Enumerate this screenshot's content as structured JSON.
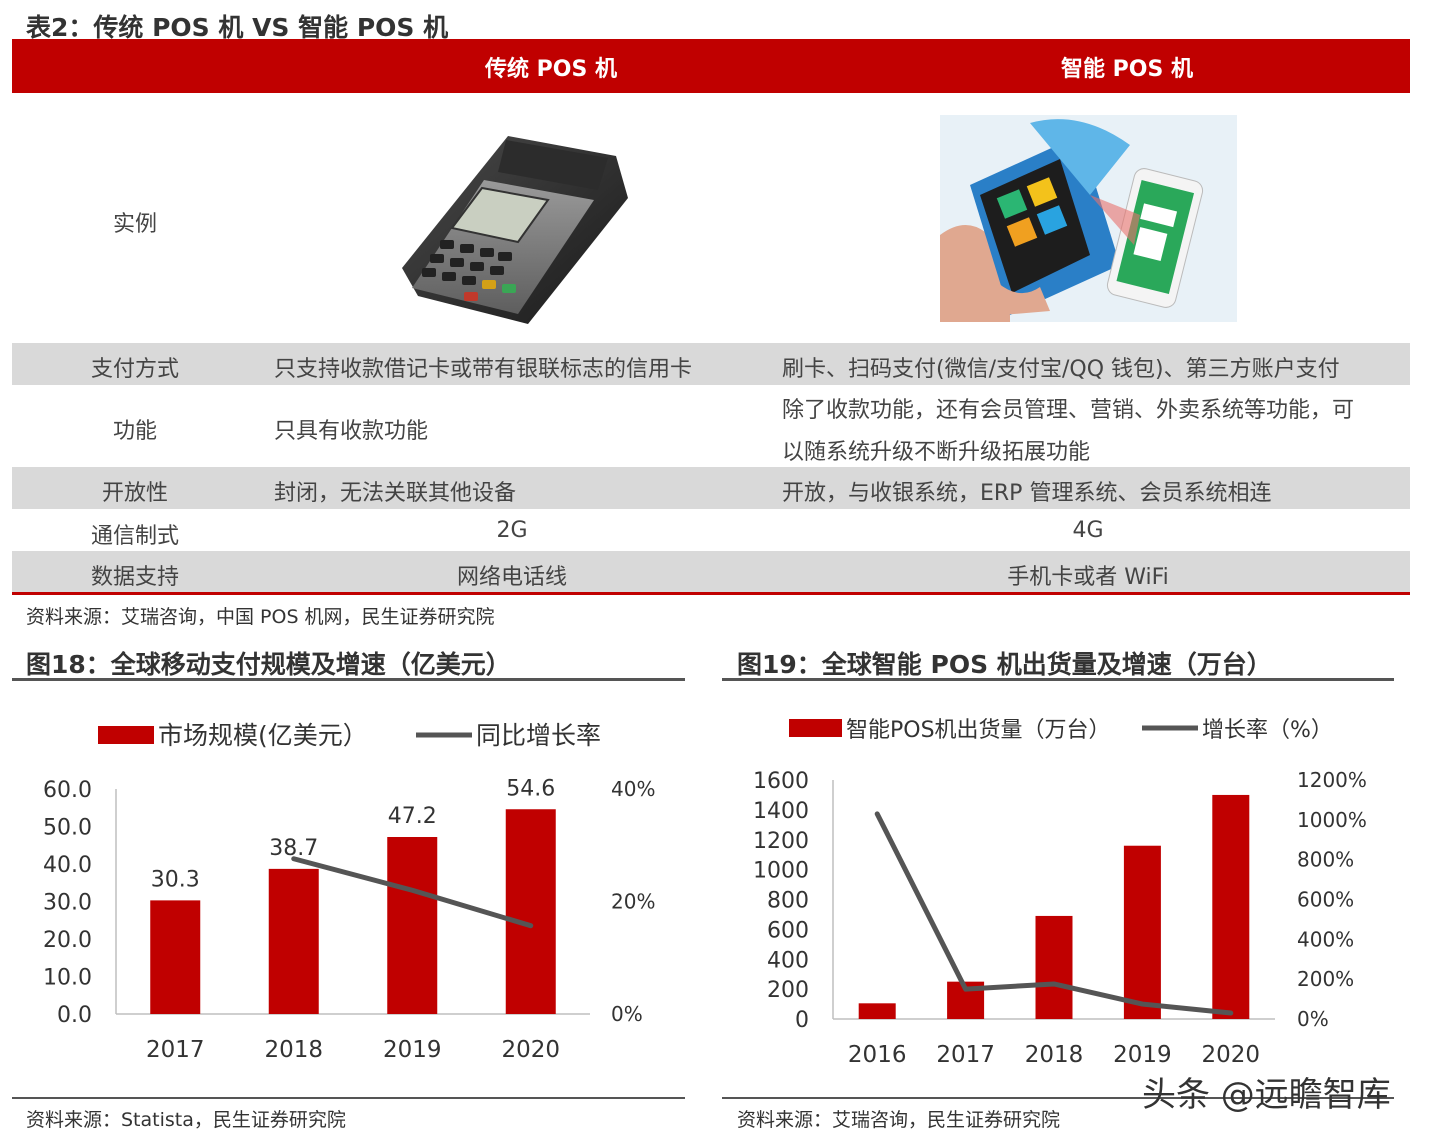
{
  "table": {
    "title": "表2：传统 POS 机 VS 智能 POS 机",
    "col_traditional": "传统 POS 机",
    "col_smart": "智能 POS 机",
    "example_label": "实例",
    "rows": [
      {
        "label": "支付方式",
        "traditional": "只支持收款借记卡或带有银联标志的信用卡",
        "smart": "刷卡、扫码支付(微信/支付宝/QQ 钱包)、第三方账户支付"
      },
      {
        "label": "功能",
        "traditional": "只具有收款功能",
        "smart_line1": "除了收款功能，还有会员管理、营销、外卖系统等功能，可",
        "smart_line2": "以随系统升级不断升级拓展功能"
      },
      {
        "label": "开放性",
        "traditional": "封闭，无法关联其他设备",
        "smart": "开放，与收银系统，ERP 管理系统、会员系统相连"
      },
      {
        "label": "通信制式",
        "traditional": "2G",
        "smart": "4G"
      },
      {
        "label": "数据支持",
        "traditional": "网络电话线",
        "smart": "手机卡或者 WiFi"
      }
    ],
    "source": "资料来源：艾瑞咨询，中国 POS 机网，民生证券研究院"
  },
  "figure18": {
    "title": "图18：全球移动支付规模及增速（亿美元）",
    "source": "资料来源：Statista，民生证券研究院"
  },
  "figure19": {
    "title": "图19：全球智能 POS 机出货量及增速（万台）",
    "source": "资料来源：艾瑞咨询，民生证券研究院"
  },
  "watermark": "头条 @远瞻智库",
  "colors": {
    "brand_red": "#c00000",
    "row_shade": "#d9d9d9",
    "line_gray": "#555555"
  },
  "chart_data": [
    {
      "type": "bar",
      "title": "图18：全球移动支付规模及增速（亿美元）",
      "categories": [
        "2017",
        "2018",
        "2019",
        "2020"
      ],
      "series": [
        {
          "name": "市场规模(亿美元）",
          "type": "bar",
          "axis": "left",
          "values": [
            30.3,
            38.7,
            47.2,
            54.6
          ],
          "data_labels": [
            "30.3",
            "38.7",
            "47.2",
            "54.6"
          ]
        },
        {
          "name": "同比增长率",
          "type": "line",
          "axis": "right",
          "values": [
            null,
            0.276,
            0.22,
            0.157
          ]
        }
      ],
      "ylim": [
        0,
        60
      ],
      "y_ticks": [
        "0.0",
        "10.0",
        "20.0",
        "30.0",
        "40.0",
        "50.0",
        "60.0"
      ],
      "y2lim": [
        0,
        0.4
      ],
      "y2_ticks": [
        "0%",
        "20%",
        "40%"
      ],
      "legend": "top",
      "grid": false
    },
    {
      "type": "bar",
      "title": "图19：全球智能 POS 机出货量及增速（万台）",
      "categories": [
        "2016",
        "2017",
        "2018",
        "2019",
        "2020"
      ],
      "series": [
        {
          "name": "智能POS机出货量（万台）",
          "type": "bar",
          "axis": "left",
          "values": [
            105,
            250,
            690,
            1160,
            1500
          ]
        },
        {
          "name": "增长率（%）",
          "type": "line",
          "axis": "right",
          "values": [
            10.3,
            1.5,
            1.76,
            0.75,
            0.3
          ]
        }
      ],
      "ylim": [
        0,
        1600
      ],
      "y_ticks": [
        "0",
        "200",
        "400",
        "600",
        "800",
        "1000",
        "1200",
        "1400",
        "1600"
      ],
      "y2lim": [
        0,
        12
      ],
      "y2_ticks": [
        "0%",
        "200%",
        "400%",
        "600%",
        "800%",
        "1000%",
        "1200%"
      ],
      "legend": "top",
      "grid": false
    }
  ]
}
